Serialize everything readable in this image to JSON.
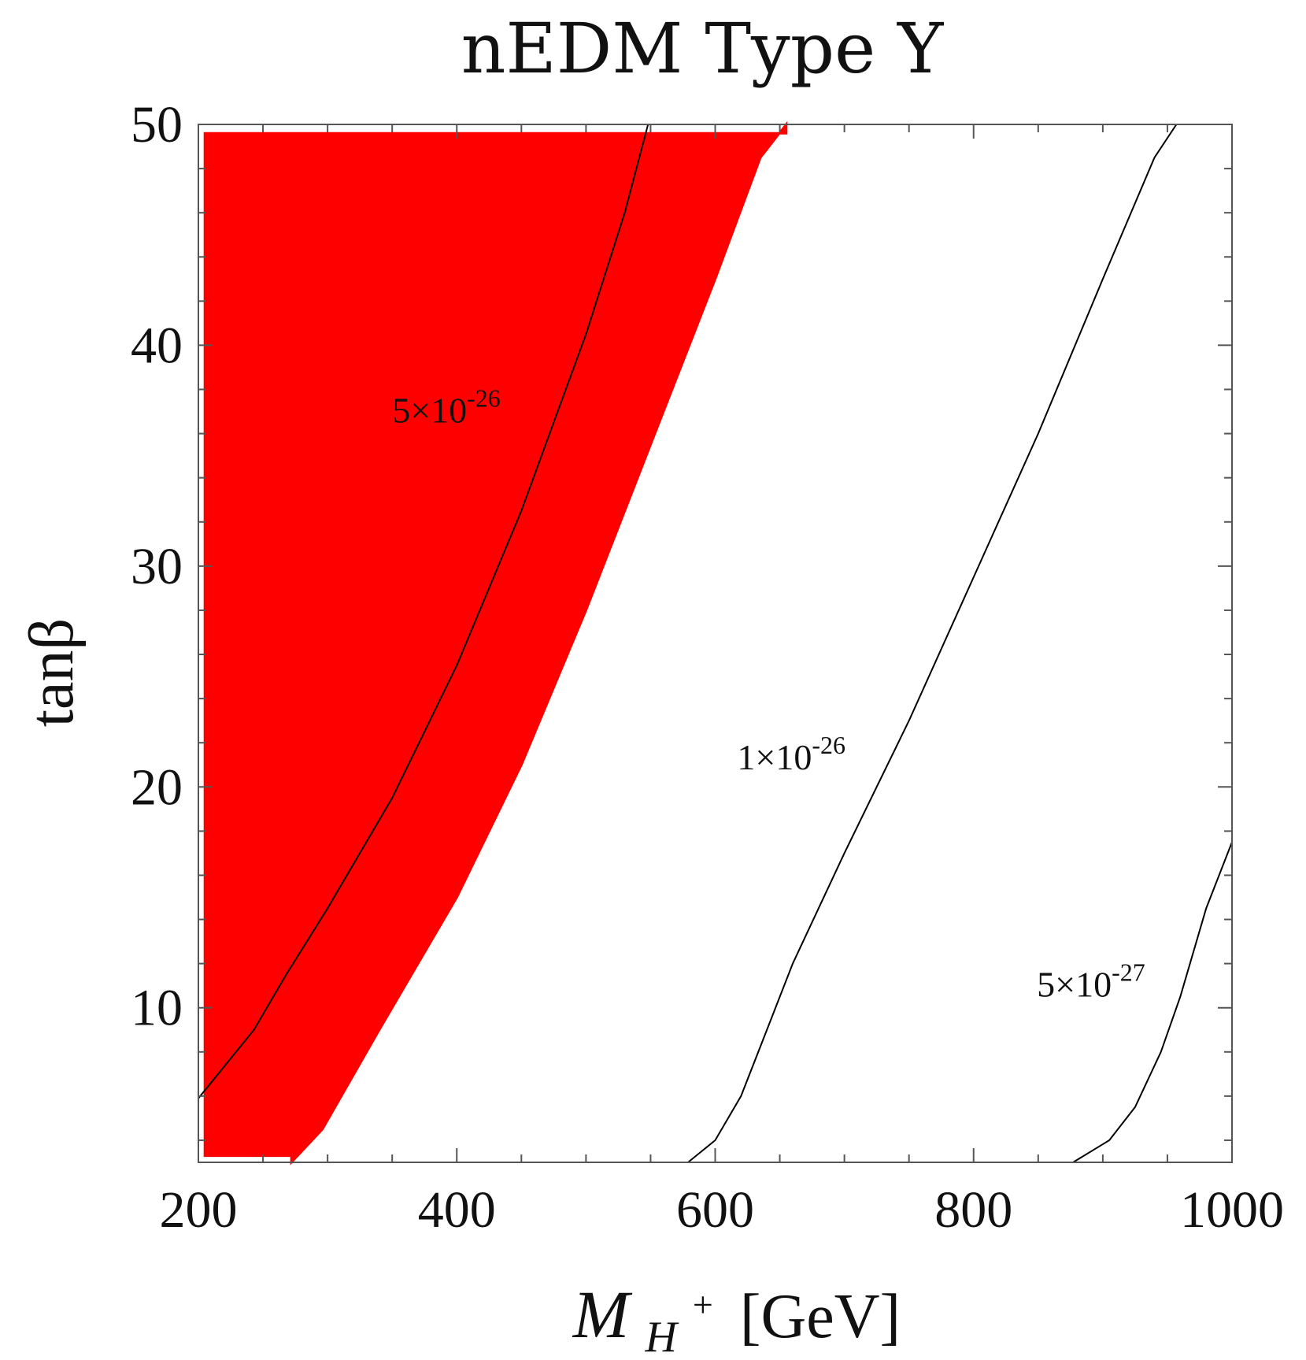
{
  "chart_data": {
    "type": "contour",
    "title": "nEDM Type Y",
    "xlabel": {
      "main": "M",
      "sub": "H",
      "sup": "+",
      "unit": "[GeV]"
    },
    "ylabel": "tanβ",
    "xlim": [
      200,
      1000
    ],
    "ylim": [
      3,
      50
    ],
    "x_ticks": [
      200,
      400,
      600,
      800,
      1000
    ],
    "x_tick_labels": [
      "200",
      "400",
      "600",
      "800",
      "1000"
    ],
    "y_ticks": [
      10,
      20,
      30,
      40,
      50
    ],
    "y_tick_labels": [
      "10",
      "20",
      "30",
      "40",
      "50"
    ],
    "excluded_region": {
      "color": "#ff0000",
      "left_edge_x": 205,
      "y_range": [
        3.3,
        49.6
      ],
      "right_boundary": [
        {
          "x": 272,
          "y": 3.0
        },
        {
          "x": 296,
          "y": 4.5
        },
        {
          "x": 340,
          "y": 9.0
        },
        {
          "x": 400,
          "y": 15.0
        },
        {
          "x": 450,
          "y": 21.0
        },
        {
          "x": 500,
          "y": 28.0
        },
        {
          "x": 550,
          "y": 35.5
        },
        {
          "x": 600,
          "y": 43.0
        },
        {
          "x": 635,
          "y": 48.5
        },
        {
          "x": 655,
          "y": 50.0
        }
      ]
    },
    "contours": [
      {
        "label_base": "5×10",
        "label_exp": "-26",
        "label_at": {
          "x": 350,
          "y": 36.5
        },
        "points": [
          {
            "x": 200,
            "y": 5.9
          },
          {
            "x": 243,
            "y": 9.0
          },
          {
            "x": 268,
            "y": 11.5
          },
          {
            "x": 300,
            "y": 14.5
          },
          {
            "x": 350,
            "y": 19.5
          },
          {
            "x": 400,
            "y": 25.5
          },
          {
            "x": 450,
            "y": 32.5
          },
          {
            "x": 500,
            "y": 40.5
          },
          {
            "x": 530,
            "y": 46.0
          },
          {
            "x": 548,
            "y": 50.0
          }
        ]
      },
      {
        "label_base": "1×10",
        "label_exp": "-26",
        "label_at": {
          "x": 617,
          "y": 20.8
        },
        "points": [
          {
            "x": 579,
            "y": 3.0
          },
          {
            "x": 600,
            "y": 4.0
          },
          {
            "x": 620,
            "y": 6.0
          },
          {
            "x": 640,
            "y": 9.0
          },
          {
            "x": 660,
            "y": 12.0
          },
          {
            "x": 700,
            "y": 17.0
          },
          {
            "x": 750,
            "y": 23.0
          },
          {
            "x": 800,
            "y": 29.5
          },
          {
            "x": 850,
            "y": 36.0
          },
          {
            "x": 900,
            "y": 43.0
          },
          {
            "x": 940,
            "y": 48.5
          },
          {
            "x": 957,
            "y": 50.0
          }
        ]
      },
      {
        "label_base": "5×10",
        "label_exp": "-27",
        "label_at": {
          "x": 849,
          "y": 10.5
        },
        "points": [
          {
            "x": 877,
            "y": 3.0
          },
          {
            "x": 905,
            "y": 4.0
          },
          {
            "x": 925,
            "y": 5.5
          },
          {
            "x": 945,
            "y": 8.0
          },
          {
            "x": 960,
            "y": 10.5
          },
          {
            "x": 980,
            "y": 14.5
          },
          {
            "x": 1000,
            "y": 17.5
          }
        ]
      }
    ],
    "grid": false,
    "legend": "none"
  }
}
